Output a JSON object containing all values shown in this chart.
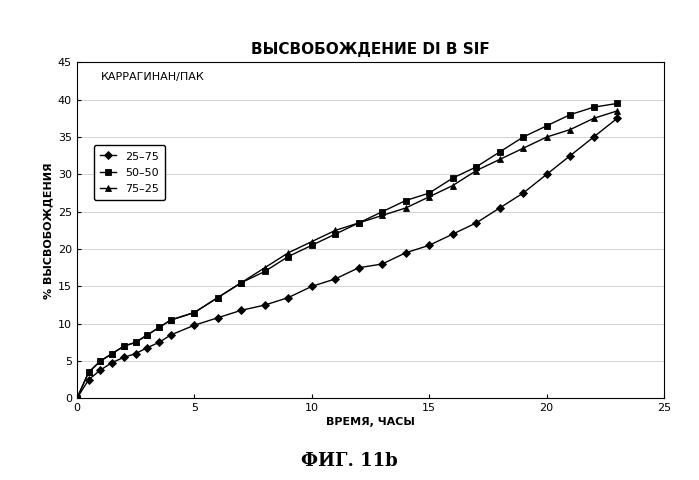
{
  "title": "ВЫСВОБОЖДЕНИЕ DI В SIF",
  "xlabel": "ВРЕМЯ, ЧАСЫ",
  "ylabel": "% ВЫСВОБОЖДЕНИЯ",
  "xlim": [
    0,
    25
  ],
  "ylim": [
    0,
    45
  ],
  "xticks": [
    0,
    5,
    10,
    15,
    20,
    25
  ],
  "yticks": [
    0,
    5,
    10,
    15,
    20,
    25,
    30,
    35,
    40,
    45
  ],
  "legend_title": "КАРРАГИНАН/ПАК",
  "series": [
    {
      "label": "25–75",
      "marker": "D",
      "color": "#000000",
      "x": [
        0,
        0.5,
        1,
        1.5,
        2,
        2.5,
        3,
        3.5,
        4,
        5,
        6,
        7,
        8,
        9,
        10,
        11,
        12,
        13,
        14,
        15,
        16,
        17,
        18,
        19,
        20,
        21,
        22,
        23
      ],
      "y": [
        0,
        2.5,
        3.8,
        4.8,
        5.5,
        6.0,
        6.8,
        7.5,
        8.5,
        9.8,
        10.8,
        11.8,
        12.5,
        13.5,
        15.0,
        16.0,
        17.5,
        18.0,
        19.5,
        20.5,
        22.0,
        23.5,
        25.5,
        27.5,
        30.0,
        32.5,
        35.0,
        37.5
      ]
    },
    {
      "label": "50–50",
      "marker": "s",
      "color": "#000000",
      "x": [
        0,
        0.5,
        1,
        1.5,
        2,
        2.5,
        3,
        3.5,
        4,
        5,
        6,
        7,
        8,
        9,
        10,
        11,
        12,
        13,
        14,
        15,
        16,
        17,
        18,
        19,
        20,
        21,
        22,
        23
      ],
      "y": [
        0,
        3.5,
        5.0,
        6.0,
        7.0,
        7.5,
        8.5,
        9.5,
        10.5,
        11.5,
        13.5,
        15.5,
        17.0,
        19.0,
        20.5,
        22.0,
        23.5,
        25.0,
        26.5,
        27.5,
        29.5,
        31.0,
        33.0,
        35.0,
        36.5,
        38.0,
        39.0,
        39.5
      ]
    },
    {
      "label": "75–25",
      "marker": "^",
      "color": "#000000",
      "x": [
        0,
        0.5,
        1,
        1.5,
        2,
        2.5,
        3,
        3.5,
        4,
        5,
        6,
        7,
        8,
        9,
        10,
        11,
        12,
        13,
        14,
        15,
        16,
        17,
        18,
        19,
        20,
        21,
        22,
        23
      ],
      "y": [
        0,
        3.5,
        5.0,
        6.0,
        7.0,
        7.5,
        8.5,
        9.5,
        10.5,
        11.5,
        13.5,
        15.5,
        17.5,
        19.5,
        21.0,
        22.5,
        23.5,
        24.5,
        25.5,
        27.0,
        28.5,
        30.5,
        32.0,
        33.5,
        35.0,
        36.0,
        37.5,
        38.5
      ]
    }
  ],
  "background_color": "#ffffff",
  "title_fontsize": 11,
  "axis_label_fontsize": 8,
  "tick_fontsize": 8,
  "legend_fontsize": 8,
  "fig_caption": "ФИГ. 11b",
  "caption_fontsize": 13
}
